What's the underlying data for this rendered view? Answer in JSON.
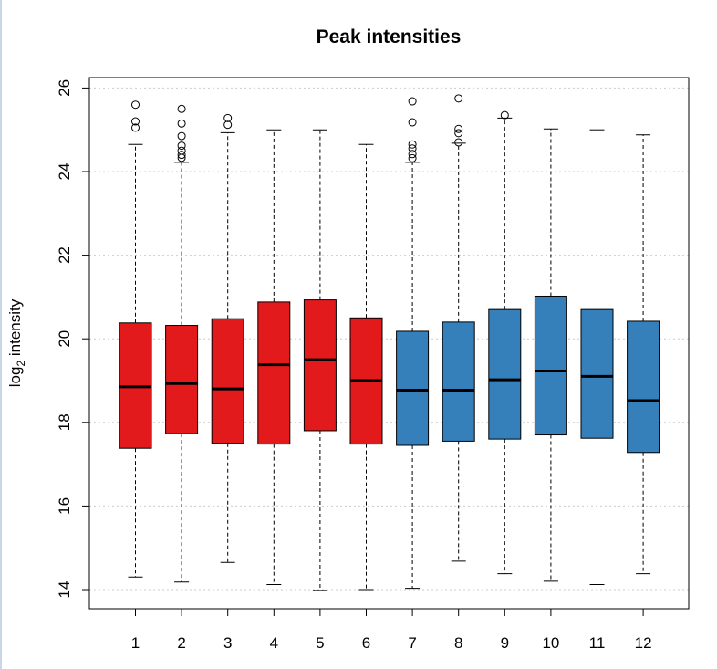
{
  "chart_data": {
    "type": "box",
    "title": "Peak intensities",
    "xlabel": "",
    "ylabel_main": "log",
    "ylabel_sub": "2",
    "ylabel_rest": " intensity",
    "ylim": [
      13.8,
      26.2
    ],
    "yticks": [
      14,
      16,
      18,
      20,
      22,
      24,
      26
    ],
    "grid": "horizontal dotted",
    "colors": {
      "group_a": "#e31a1c",
      "group_b": "#3580bb"
    },
    "categories": [
      "1",
      "2",
      "3",
      "4",
      "5",
      "6",
      "7",
      "8",
      "9",
      "10",
      "11",
      "12"
    ],
    "boxes": [
      {
        "label": "1",
        "color": "#e31a1c",
        "min": 14.3,
        "q1": 17.38,
        "median": 18.85,
        "q3": 20.38,
        "max": 24.65,
        "outliers": [
          25.6,
          25.2,
          25.05
        ]
      },
      {
        "label": "2",
        "color": "#e31a1c",
        "min": 14.18,
        "q1": 17.73,
        "median": 18.93,
        "q3": 20.32,
        "max": 24.22,
        "outliers": [
          25.5,
          25.15,
          24.85,
          24.62,
          24.5,
          24.4,
          24.33
        ]
      },
      {
        "label": "3",
        "color": "#e31a1c",
        "min": 14.65,
        "q1": 17.5,
        "median": 18.8,
        "q3": 20.48,
        "max": 24.93,
        "outliers": [
          25.28,
          25.12
        ]
      },
      {
        "label": "4",
        "color": "#e31a1c",
        "min": 14.12,
        "q1": 17.48,
        "median": 19.38,
        "q3": 20.88,
        "max": 25.0,
        "outliers": []
      },
      {
        "label": "5",
        "color": "#e31a1c",
        "min": 13.98,
        "q1": 17.8,
        "median": 19.5,
        "q3": 20.93,
        "max": 25.0,
        "outliers": []
      },
      {
        "label": "6",
        "color": "#e31a1c",
        "min": 14.0,
        "q1": 17.48,
        "median": 19.0,
        "q3": 20.5,
        "max": 24.65,
        "outliers": []
      },
      {
        "label": "7",
        "color": "#3580bb",
        "min": 14.03,
        "q1": 17.45,
        "median": 18.77,
        "q3": 20.18,
        "max": 24.22,
        "outliers": [
          25.68,
          25.18,
          24.65,
          24.55,
          24.42,
          24.32
        ]
      },
      {
        "label": "8",
        "color": "#3580bb",
        "min": 14.68,
        "q1": 17.55,
        "median": 18.77,
        "q3": 20.4,
        "max": 24.68,
        "outliers": [
          25.75,
          25.02,
          24.92,
          24.7
        ]
      },
      {
        "label": "9",
        "color": "#3580bb",
        "min": 14.38,
        "q1": 17.6,
        "median": 19.02,
        "q3": 20.7,
        "max": 25.28,
        "outliers": [
          25.35
        ]
      },
      {
        "label": "10",
        "color": "#3580bb",
        "min": 14.2,
        "q1": 17.7,
        "median": 19.23,
        "q3": 21.02,
        "max": 25.02,
        "outliers": []
      },
      {
        "label": "11",
        "color": "#3580bb",
        "min": 14.12,
        "q1": 17.62,
        "median": 19.1,
        "q3": 20.7,
        "max": 25.0,
        "outliers": []
      },
      {
        "label": "12",
        "color": "#3580bb",
        "min": 14.38,
        "q1": 17.28,
        "median": 18.52,
        "q3": 20.42,
        "max": 24.88,
        "outliers": []
      }
    ]
  }
}
